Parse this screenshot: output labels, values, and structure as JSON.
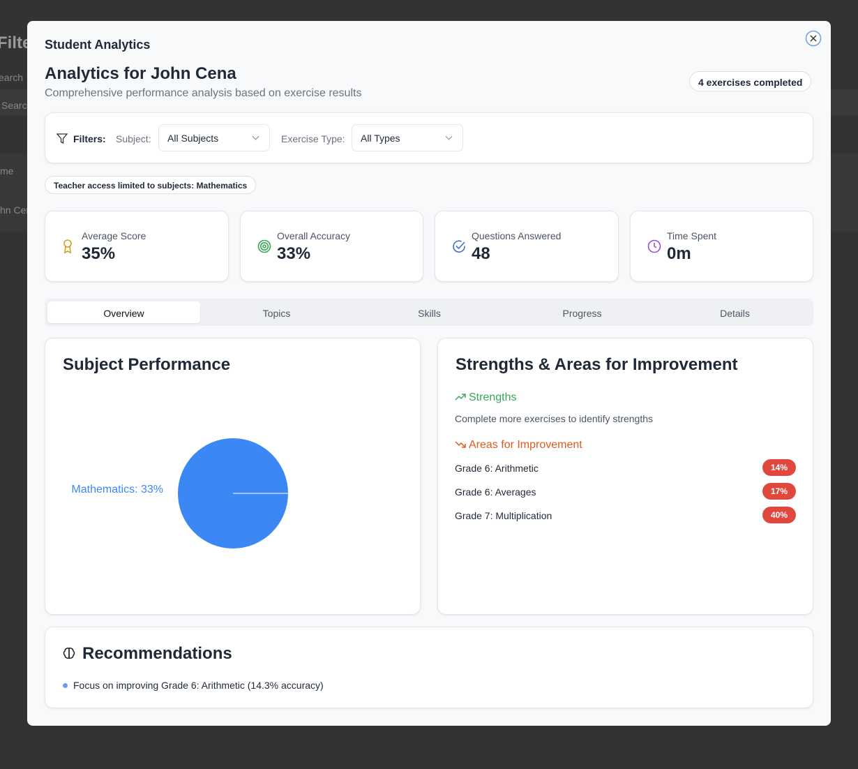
{
  "background": {
    "texts": [
      "Filte",
      "earch",
      "Searc",
      "me",
      "hn Cen"
    ]
  },
  "modal": {
    "title": "Student Analytics"
  },
  "header": {
    "title": "Analytics for John Cena",
    "subtitle": "Comprehensive performance analysis based on exercise results",
    "badge": "4 exercises completed"
  },
  "filters": {
    "label": "Filters:",
    "subject_label": "Subject:",
    "subject_value": "All Subjects",
    "type_label": "Exercise Type:",
    "type_value": "All Types"
  },
  "access_note": "Teacher access limited to subjects: Mathematics",
  "stats": [
    {
      "label": "Average Score",
      "value": "35%"
    },
    {
      "label": "Overall Accuracy",
      "value": "33%"
    },
    {
      "label": "Questions Answered",
      "value": "48"
    },
    {
      "label": "Time Spent",
      "value": "0m"
    }
  ],
  "tabs": {
    "items": [
      "Overview",
      "Topics",
      "Skills",
      "Progress",
      "Details"
    ],
    "active": 0
  },
  "subject_performance": {
    "title": "Subject Performance",
    "chart": {
      "type": "pie",
      "categories": [
        "Mathematics"
      ],
      "values": [
        33
      ],
      "value_labels": [
        "Mathematics: 33%"
      ],
      "color": "#3b88f5"
    }
  },
  "strengths": {
    "title": "Strengths & Areas for Improvement",
    "strengths_heading": "Strengths",
    "strengths_empty": "Complete more exercises to identify strengths",
    "improvement_heading": "Areas for Improvement",
    "items": [
      {
        "name": "Grade 6: Arithmetic",
        "score": "14%"
      },
      {
        "name": "Grade 6: Averages",
        "score": "17%"
      },
      {
        "name": "Grade 7: Multiplication",
        "score": "40%"
      }
    ]
  },
  "recommendations": {
    "title": "Recommendations",
    "items": [
      "Focus on improving Grade 6: Arithmetic (14.3% accuracy)"
    ]
  }
}
